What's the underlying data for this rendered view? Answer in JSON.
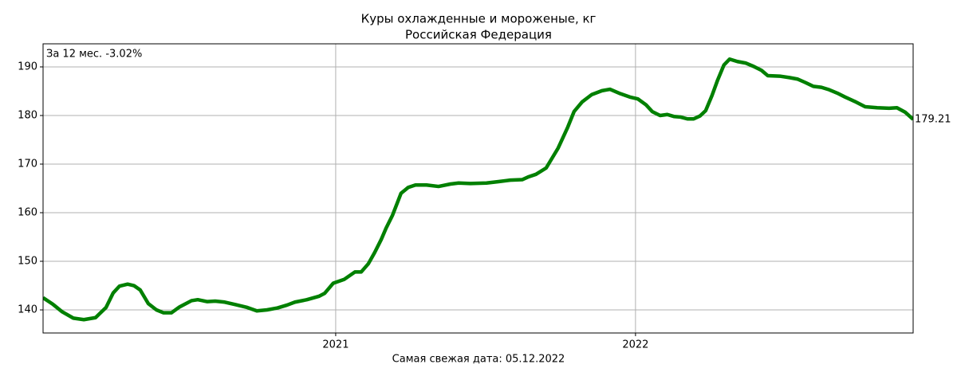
{
  "chart_data": {
    "type": "line",
    "title": "Куры охлажденные и мороженые, кг",
    "subtitle": "Российская Федерация",
    "annotation": "За 12 мес. -3.02%",
    "footnote": "Самая свежая дата: 05.12.2022",
    "last_value_label": "179.21",
    "x": [
      2020.024,
      2020.056,
      2020.088,
      2020.125,
      2020.16,
      2020.199,
      2020.234,
      2020.258,
      2020.279,
      2020.306,
      2020.327,
      2020.348,
      2020.375,
      2020.402,
      2020.426,
      2020.452,
      2020.479,
      2020.519,
      2020.54,
      2020.572,
      2020.598,
      2020.63,
      2020.665,
      2020.705,
      2020.737,
      2020.771,
      2020.806,
      2020.838,
      2020.864,
      2020.904,
      2020.944,
      2020.963,
      2020.992,
      2021.029,
      2021.064,
      2021.085,
      2021.109,
      2021.13,
      2021.152,
      2021.168,
      2021.189,
      2021.218,
      2021.242,
      2021.266,
      2021.303,
      2021.343,
      2021.383,
      2021.41,
      2021.449,
      2021.503,
      2021.543,
      2021.582,
      2021.622,
      2021.644,
      2021.668,
      2021.702,
      2021.742,
      2021.774,
      2021.795,
      2021.822,
      2021.854,
      2021.888,
      2021.915,
      2021.949,
      2021.981,
      2022.008,
      2022.035,
      2022.056,
      2022.082,
      2022.106,
      2022.128,
      2022.149,
      2022.173,
      2022.194,
      2022.215,
      2022.234,
      2022.255,
      2022.274,
      2022.295,
      2022.314,
      2022.34,
      2022.367,
      2022.394,
      2022.42,
      2022.441,
      2022.481,
      2022.513,
      2022.54,
      2022.566,
      2022.593,
      2022.62,
      2022.646,
      2022.673,
      2022.699,
      2022.731,
      2022.766,
      2022.806,
      2022.846,
      2022.872,
      2022.899,
      2022.926
    ],
    "series": [
      {
        "name": "Куры",
        "color": "#008000",
        "values": [
          142.5,
          141.2,
          139.6,
          138.3,
          138.0,
          138.4,
          140.5,
          143.5,
          144.9,
          145.3,
          145.0,
          144.1,
          141.3,
          140.0,
          139.4,
          139.4,
          140.6,
          141.9,
          142.1,
          141.7,
          141.8,
          141.6,
          141.1,
          140.5,
          139.8,
          140.0,
          140.4,
          141.0,
          141.6,
          142.1,
          142.8,
          143.4,
          145.5,
          146.3,
          147.8,
          147.8,
          149.5,
          151.8,
          154.5,
          156.8,
          159.4,
          164.0,
          165.2,
          165.7,
          165.7,
          165.4,
          165.9,
          166.1,
          166.0,
          166.1,
          166.4,
          166.7,
          166.8,
          167.4,
          167.9,
          169.2,
          173.3,
          177.6,
          180.8,
          182.8,
          184.3,
          185.1,
          185.4,
          184.5,
          183.8,
          183.4,
          182.2,
          180.8,
          180.0,
          180.2,
          179.8,
          179.7,
          179.3,
          179.3,
          179.9,
          181.0,
          184.1,
          187.3,
          190.4,
          191.6,
          191.1,
          190.8,
          190.1,
          189.3,
          188.2,
          188.1,
          187.8,
          187.5,
          186.8,
          186.0,
          185.8,
          185.3,
          184.6,
          183.8,
          182.9,
          181.8,
          181.6,
          181.5,
          181.6,
          180.7,
          179.21
        ]
      }
    ],
    "xlim": [
      2020.024,
      2022.926
    ],
    "xticks": [
      2021,
      2022
    ],
    "ylim": [
      135.25,
      194.75
    ],
    "yticks": [
      140,
      150,
      160,
      170,
      180,
      190
    ],
    "grid": true
  }
}
